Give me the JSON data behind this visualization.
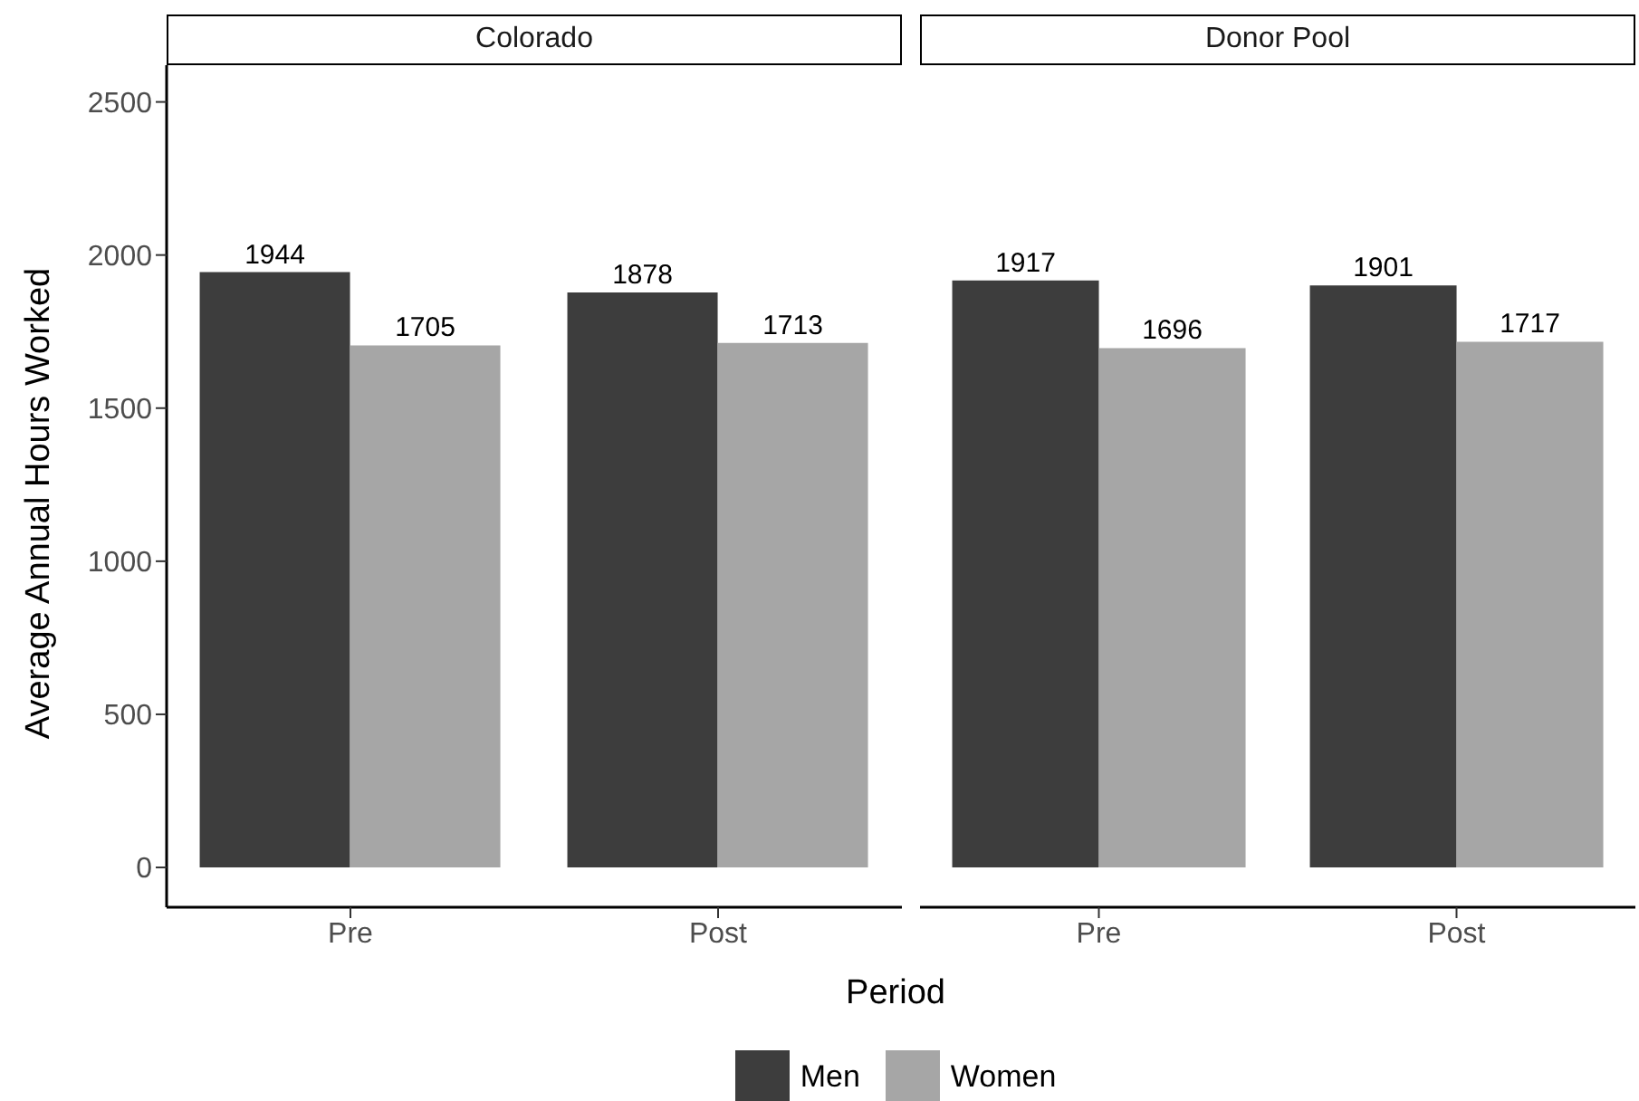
{
  "chart_data": [
    {
      "type": "bar",
      "title": "Colorado",
      "xlabel": "Period",
      "ylabel": "Average Annual Hours Worked",
      "categories": [
        "Pre",
        "Post"
      ],
      "series": [
        {
          "name": "Men",
          "color": "#3d3d3d",
          "values": [
            1944,
            1878
          ]
        },
        {
          "name": "Women",
          "color": "#a6a6a6",
          "values": [
            1705,
            1713
          ]
        }
      ],
      "ylim": [
        -130,
        2620
      ],
      "yticks": [
        0,
        500,
        1000,
        1500,
        2000,
        2500
      ],
      "data_labels": true,
      "legend": "bottom",
      "grid": false
    },
    {
      "type": "bar",
      "title": "Donor Pool",
      "categories": [
        "Pre",
        "Post"
      ],
      "series": [
        {
          "color": "#3d3d3d",
          "values": [
            1917,
            1901
          ]
        },
        {
          "color": "#a6a6a6",
          "values": [
            1696,
            1717
          ]
        }
      ],
      "data_labels": true,
      "tick_labels": "x",
      "grid": false
    }
  ]
}
